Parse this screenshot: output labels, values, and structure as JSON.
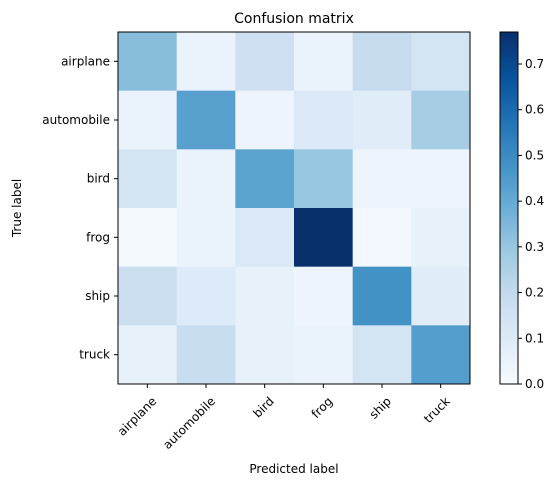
{
  "chart_data": {
    "type": "heatmap",
    "title": "Confusion matrix",
    "xlabel": "Predicted label",
    "ylabel": "True label",
    "row_labels": [
      "airplane",
      "automobile",
      "bird",
      "frog",
      "ship",
      "truck"
    ],
    "col_labels": [
      "airplane",
      "automobile",
      "bird",
      "frog",
      "ship",
      "truck"
    ],
    "values": [
      [
        0.33,
        0.05,
        0.16,
        0.05,
        0.19,
        0.14
      ],
      [
        0.05,
        0.43,
        0.04,
        0.11,
        0.09,
        0.27
      ],
      [
        0.14,
        0.05,
        0.42,
        0.3,
        0.04,
        0.04
      ],
      [
        0.01,
        0.05,
        0.11,
        0.77,
        0.02,
        0.06
      ],
      [
        0.17,
        0.1,
        0.06,
        0.04,
        0.48,
        0.09
      ],
      [
        0.06,
        0.18,
        0.06,
        0.05,
        0.14,
        0.44
      ]
    ],
    "colormap": "Blues",
    "vmin": 0.0,
    "vmax": 0.77,
    "colorbar_ticks": [
      0.0,
      0.1,
      0.2,
      0.3,
      0.4,
      0.5,
      0.6,
      0.7
    ],
    "colorbar_tick_labels": [
      "0.0",
      "0.1",
      "0.2",
      "0.3",
      "0.4",
      "0.5",
      "0.6",
      "0.7"
    ],
    "colorbar_position": "right",
    "grid": false
  }
}
